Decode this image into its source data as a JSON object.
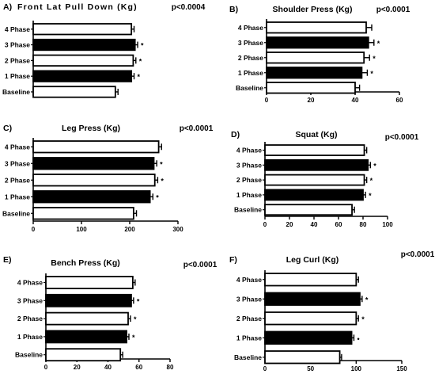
{
  "chart_data": [
    {
      "type": "bar",
      "orientation": "horizontal",
      "panel": "A)",
      "title": "Front Lat Pull Down (Kg)",
      "p_value": "p<0.0004",
      "categories": [
        "4 Phase",
        "3 Phase",
        "2 Phase",
        "1 Phase",
        "Baseline"
      ],
      "values": [
        55,
        57,
        56,
        55,
        46
      ],
      "errors": [
        1.5,
        1.5,
        1.5,
        1.5,
        1.5
      ],
      "fills": [
        "#ffffff",
        "#000000",
        "#ffffff",
        "#000000",
        "#ffffff"
      ],
      "markers": [
        "",
        "*",
        "*",
        "*",
        ""
      ],
      "xlim": [
        0,
        70
      ],
      "ticks": [],
      "tick_labels": []
    },
    {
      "type": "bar",
      "orientation": "horizontal",
      "panel": "B)",
      "title": "Shoulder Press (Kg)",
      "p_value": "p<0.0001",
      "categories": [
        "4 Phase",
        "3 Phase",
        "2 Phase",
        "1 Phase",
        "Baseline"
      ],
      "values": [
        45,
        46,
        44,
        43,
        40
      ],
      "errors": [
        2.5,
        2.5,
        2.5,
        2.5,
        2
      ],
      "fills": [
        "#ffffff",
        "#000000",
        "#ffffff",
        "#000000",
        "#ffffff"
      ],
      "markers": [
        "",
        "*",
        "*",
        "*",
        ""
      ],
      "xlim": [
        0,
        60
      ],
      "ticks": [
        0,
        20,
        40,
        60
      ],
      "tick_labels": [
        "0",
        "20",
        "40",
        "60"
      ]
    },
    {
      "type": "bar",
      "orientation": "horizontal",
      "panel": "C)",
      "title": "Leg Press (Kg)",
      "p_value": "p<0.0001",
      "categories": [
        "4 Phase",
        "3 Phase",
        "2 Phase",
        "1 Phase",
        "Baseline"
      ],
      "values": [
        260,
        250,
        252,
        242,
        208
      ],
      "errors": [
        6,
        6,
        6,
        6,
        6
      ],
      "fills": [
        "#ffffff",
        "#000000",
        "#ffffff",
        "#000000",
        "#ffffff"
      ],
      "markers": [
        "",
        "*",
        "*",
        "*",
        ""
      ],
      "xlim": [
        0,
        300
      ],
      "ticks": [
        0,
        100,
        200,
        300
      ],
      "tick_labels": [
        "0",
        "100",
        "200",
        "300"
      ]
    },
    {
      "type": "bar",
      "orientation": "horizontal",
      "panel": "D)",
      "title": "Squat (Kg)",
      "p_value": "p<0.0001",
      "categories": [
        "4 Phase",
        "3 Phase",
        "2 Phase",
        "1 Phase",
        "Baseline"
      ],
      "values": [
        81,
        84,
        81,
        80,
        71
      ],
      "errors": [
        2,
        2,
        2,
        2,
        2
      ],
      "fills": [
        "#ffffff",
        "#000000",
        "#ffffff",
        "#000000",
        "#ffffff"
      ],
      "markers": [
        "",
        "*",
        "*",
        "*",
        ""
      ],
      "xlim": [
        0,
        100
      ],
      "ticks": [
        0,
        20,
        40,
        60,
        80,
        100
      ],
      "tick_labels": [
        "0",
        "20",
        "40",
        "60",
        "80",
        "100"
      ]
    },
    {
      "type": "bar",
      "orientation": "horizontal",
      "panel": "E)",
      "title": "Bench Press (Kg)",
      "p_value": "p<0.0001",
      "categories": [
        "4 Phase",
        "3 Phase",
        "2 Phase",
        "1 Phase",
        "Baseline"
      ],
      "values": [
        56,
        55,
        53,
        52,
        48
      ],
      "errors": [
        1.5,
        1.5,
        1.5,
        1.5,
        1.5
      ],
      "fills": [
        "#ffffff",
        "#000000",
        "#ffffff",
        "#000000",
        "#ffffff"
      ],
      "markers": [
        "",
        "*",
        "*",
        "*",
        ""
      ],
      "xlim": [
        0,
        80
      ],
      "ticks": [
        0,
        20,
        40,
        60,
        80
      ],
      "tick_labels": [
        "0",
        "20",
        "40",
        "60",
        "80"
      ]
    },
    {
      "type": "bar",
      "orientation": "horizontal",
      "panel": "F)",
      "title": "Leg Curl (Kg)",
      "p_value": "p<0.0001",
      "categories": [
        "4 Phase",
        "3 Phase",
        "2 Phase",
        "1 Phase",
        "Baseline"
      ],
      "values": [
        100,
        104,
        100,
        95,
        82
      ],
      "errors": [
        2.5,
        2.5,
        2.5,
        2.5,
        2
      ],
      "fills": [
        "#ffffff",
        "#000000",
        "#ffffff",
        "#000000",
        "#ffffff"
      ],
      "markers": [
        "",
        "*",
        "*",
        "•",
        ""
      ],
      "xlim": [
        0,
        150
      ],
      "ticks": [
        0,
        50,
        100,
        150
      ],
      "tick_labels": [
        "0",
        "50",
        "100",
        "150"
      ]
    }
  ]
}
